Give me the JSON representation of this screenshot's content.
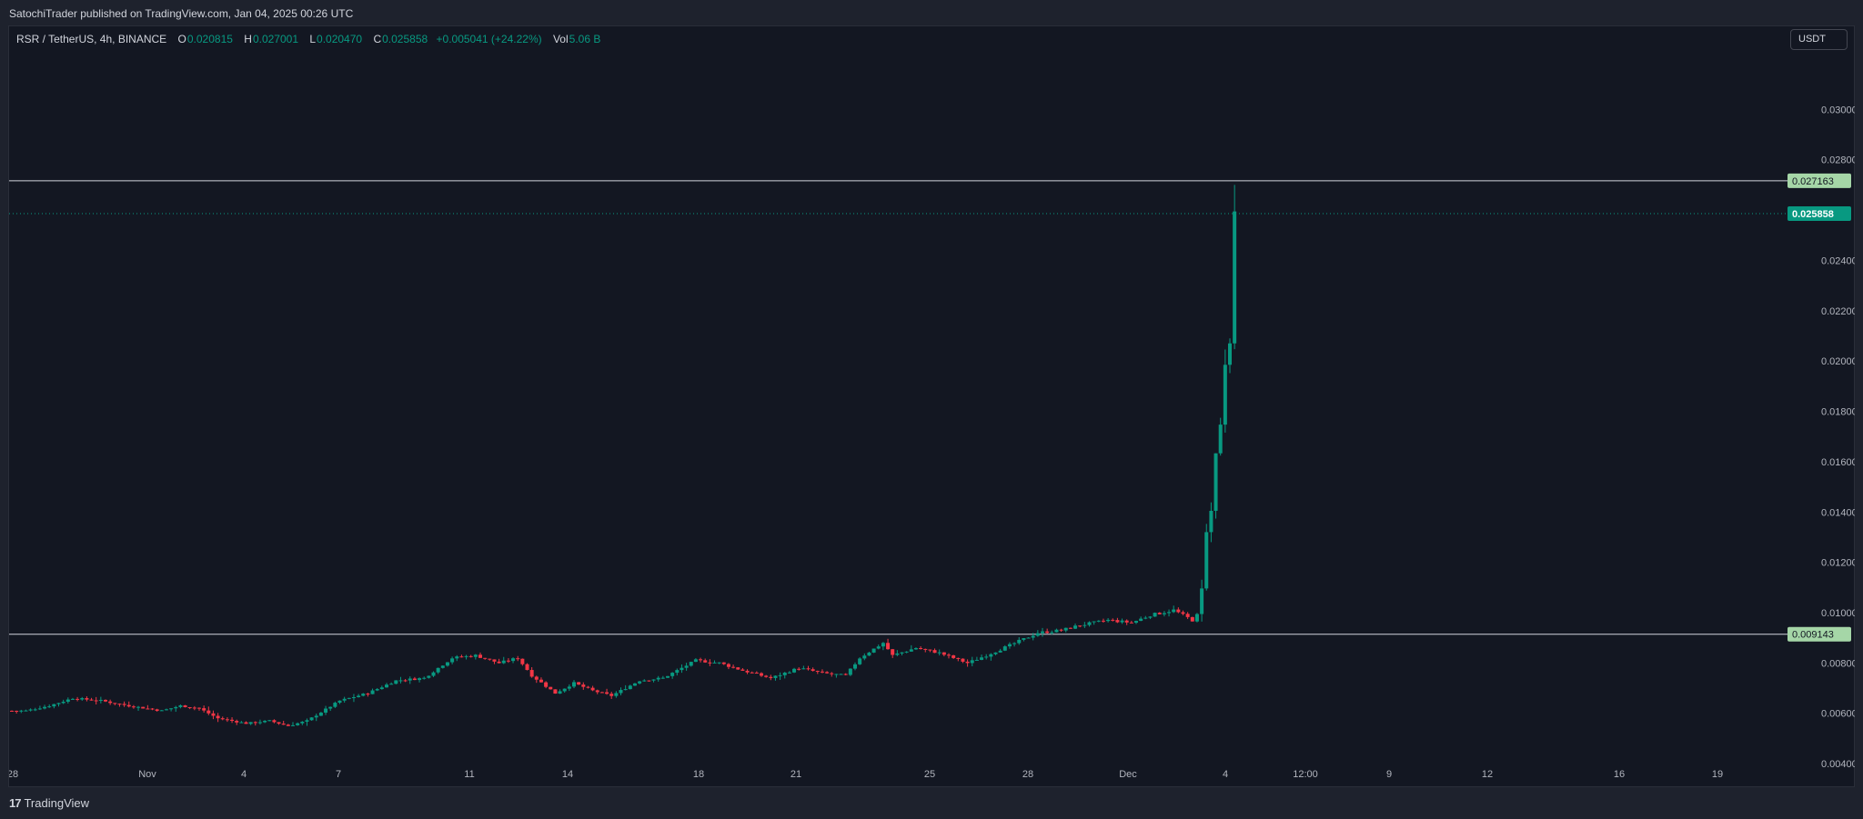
{
  "header": {
    "published": "SatochiTrader published on TradingView.com, Jan 04, 2025 00:26 UTC"
  },
  "legend": {
    "symbol": "RSR / TetherUS, 4h, BINANCE",
    "o_label": "O",
    "o_value": "0.020815",
    "h_label": "H",
    "h_value": "0.027001",
    "l_label": "L",
    "l_value": "0.020470",
    "c_label": "C",
    "c_value": "0.025858",
    "change": "+0.005041 (+24.22%)",
    "vol_label": "Vol",
    "vol_value": "5.06 B"
  },
  "currency_button": "USDT",
  "footer": {
    "brand": "TradingView",
    "brand_mark": "17"
  },
  "colors": {
    "up": "#089981",
    "down": "#f23645",
    "background": "#131722",
    "level": "#d1d4dc",
    "level_label_bg": "#a5d6a7"
  },
  "chart_data": {
    "type": "candlestick",
    "title": "RSR / TetherUS, 4h, BINANCE",
    "y_axis": {
      "ticks": [
        "0.030000",
        "0.028000",
        "0.024000",
        "0.022000",
        "0.020000",
        "0.018000",
        "0.016000",
        "0.014000",
        "0.012000",
        "0.010000",
        "0.008000",
        "0.006000",
        "0.004000"
      ],
      "range": [
        0.0031,
        0.0333
      ]
    },
    "x_axis": {
      "ticks": [
        "28",
        "Nov",
        "4",
        "7",
        "11",
        "14",
        "18",
        "21",
        "25",
        "28",
        "Dec",
        "4",
        "12:00",
        "9",
        "12",
        "16",
        "19"
      ]
    },
    "horizontal_levels": [
      {
        "label": "0.027163",
        "value": 0.027163
      },
      {
        "label": "0.009143",
        "value": 0.009143
      }
    ],
    "last_price": {
      "label": "0.025858",
      "value": 0.025858
    },
    "price_path": [
      [
        0,
        0.0061
      ],
      [
        3,
        0.0061
      ],
      [
        8,
        0.0063
      ],
      [
        13,
        0.0066
      ],
      [
        19,
        0.0065
      ],
      [
        25,
        0.0063
      ],
      [
        32,
        0.0061
      ],
      [
        36,
        0.0063
      ],
      [
        40,
        0.0062
      ],
      [
        44,
        0.0058
      ],
      [
        50,
        0.0056
      ],
      [
        55,
        0.0057
      ],
      [
        59,
        0.0055
      ],
      [
        63,
        0.0057
      ],
      [
        70,
        0.0065
      ],
      [
        76,
        0.0068
      ],
      [
        82,
        0.0073
      ],
      [
        88,
        0.0074
      ],
      [
        94,
        0.0082
      ],
      [
        99,
        0.0083
      ],
      [
        104,
        0.008
      ],
      [
        108,
        0.0082
      ],
      [
        111,
        0.0075
      ],
      [
        116,
        0.0068
      ],
      [
        120,
        0.0072
      ],
      [
        124,
        0.0069
      ],
      [
        128,
        0.0067
      ],
      [
        134,
        0.0073
      ],
      [
        139,
        0.0074
      ],
      [
        146,
        0.0081
      ],
      [
        151,
        0.008
      ],
      [
        156,
        0.0077
      ],
      [
        162,
        0.0074
      ],
      [
        168,
        0.0078
      ],
      [
        173,
        0.0076
      ],
      [
        178,
        0.0075
      ],
      [
        181,
        0.0082
      ],
      [
        186,
        0.0088
      ],
      [
        188,
        0.0083
      ],
      [
        193,
        0.0086
      ],
      [
        198,
        0.0084
      ],
      [
        204,
        0.008
      ],
      [
        208,
        0.0083
      ],
      [
        213,
        0.0087
      ],
      [
        219,
        0.0092
      ],
      [
        224,
        0.0093
      ],
      [
        228,
        0.0095
      ],
      [
        234,
        0.0097
      ],
      [
        239,
        0.0096
      ],
      [
        243,
        0.0099
      ],
      [
        248,
        0.0101
      ],
      [
        251,
        0.0098
      ],
      [
        252,
        0.0097
      ],
      [
        253,
        0.0099
      ],
      [
        254,
        0.011
      ],
      [
        255,
        0.0132
      ],
      [
        256,
        0.0141
      ],
      [
        257,
        0.0163
      ],
      [
        258,
        0.0175
      ],
      [
        259,
        0.0198
      ],
      [
        260,
        0.0208
      ],
      [
        261,
        0.0258
      ]
    ]
  }
}
